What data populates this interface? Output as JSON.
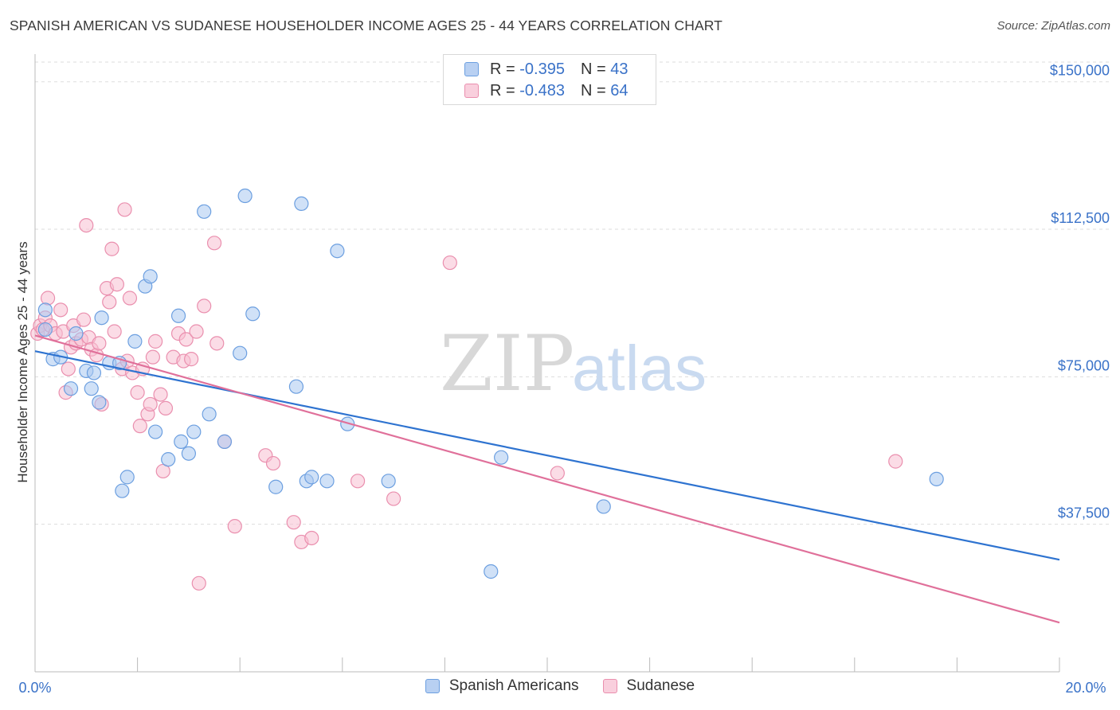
{
  "title": "SPANISH AMERICAN VS SUDANESE HOUSEHOLDER INCOME AGES 25 - 44 YEARS CORRELATION CHART",
  "source": "Source: ZipAtlas.com",
  "watermark": {
    "zip": "ZIP",
    "atlas": "atlas"
  },
  "colors": {
    "blue_fill": "#a9c8f0",
    "blue_stroke": "#6c9fe0",
    "blue_line": "#2e73d0",
    "pink_fill": "#f7bfd1",
    "pink_stroke": "#ea8fae",
    "pink_line": "#e0709a",
    "tick_label": "#3a72c8"
  },
  "legend_top": [
    {
      "r_label": "R = ",
      "r_value": "-0.395",
      "n_label": "N = ",
      "n_value": "43"
    },
    {
      "r_label": "R = ",
      "r_value": "-0.483",
      "n_label": "N = ",
      "n_value": "64"
    }
  ],
  "chart_data": {
    "type": "scatter",
    "xlabel": "",
    "ylabel": "Householder Income Ages 25 - 44 years",
    "xlim": [
      0,
      20
    ],
    "ylim": [
      0,
      155000
    ],
    "x_tick_labels": [
      "0.0%",
      "20.0%"
    ],
    "y_ticks": [
      37500,
      75000,
      112500,
      150000
    ],
    "y_tick_labels": [
      "$37,500",
      "$75,000",
      "$112,500",
      "$150,000"
    ],
    "grid": "horizontal dashed",
    "legend_position": "bottom",
    "series": [
      {
        "name": "Spanish Americans",
        "trend": {
          "x": [
            0,
            20
          ],
          "y": [
            81500,
            28500
          ]
        },
        "points": [
          [
            0.2,
            92000
          ],
          [
            0.2,
            87000
          ],
          [
            0.35,
            79500
          ],
          [
            0.5,
            80000
          ],
          [
            0.7,
            72000
          ],
          [
            0.8,
            86000
          ],
          [
            1.0,
            76500
          ],
          [
            1.1,
            72000
          ],
          [
            1.15,
            76000
          ],
          [
            1.25,
            68500
          ],
          [
            1.3,
            90000
          ],
          [
            1.45,
            78500
          ],
          [
            1.65,
            78500
          ],
          [
            1.7,
            46000
          ],
          [
            1.8,
            49500
          ],
          [
            1.95,
            84000
          ],
          [
            2.15,
            98000
          ],
          [
            2.25,
            100500
          ],
          [
            2.35,
            61000
          ],
          [
            2.6,
            54000
          ],
          [
            2.8,
            90500
          ],
          [
            2.85,
            58500
          ],
          [
            3.0,
            55500
          ],
          [
            3.1,
            61000
          ],
          [
            3.3,
            117000
          ],
          [
            3.4,
            65500
          ],
          [
            3.7,
            58500
          ],
          [
            4.0,
            81000
          ],
          [
            4.1,
            121000
          ],
          [
            4.25,
            91000
          ],
          [
            4.7,
            47000
          ],
          [
            5.1,
            72500
          ],
          [
            5.2,
            119000
          ],
          [
            5.3,
            48500
          ],
          [
            5.4,
            49500
          ],
          [
            5.7,
            48500
          ],
          [
            5.9,
            107000
          ],
          [
            6.1,
            63000
          ],
          [
            6.9,
            48500
          ],
          [
            8.9,
            25500
          ],
          [
            9.1,
            54500
          ],
          [
            11.1,
            42000
          ],
          [
            17.6,
            49000
          ]
        ]
      },
      {
        "name": "Sudanese",
        "trend": {
          "x": [
            0,
            20
          ],
          "y": [
            85500,
            12500
          ]
        },
        "points": [
          [
            0.05,
            86000
          ],
          [
            0.1,
            88000
          ],
          [
            0.15,
            87000
          ],
          [
            0.2,
            90000
          ],
          [
            0.25,
            95000
          ],
          [
            0.3,
            88000
          ],
          [
            0.4,
            86000
          ],
          [
            0.5,
            92000
          ],
          [
            0.55,
            86500
          ],
          [
            0.6,
            71000
          ],
          [
            0.65,
            77000
          ],
          [
            0.7,
            82500
          ],
          [
            0.75,
            88000
          ],
          [
            0.8,
            83500
          ],
          [
            0.9,
            84500
          ],
          [
            0.95,
            89500
          ],
          [
            1.0,
            113500
          ],
          [
            1.05,
            85000
          ],
          [
            1.1,
            82000
          ],
          [
            1.2,
            80500
          ],
          [
            1.25,
            83500
          ],
          [
            1.3,
            68000
          ],
          [
            1.4,
            97500
          ],
          [
            1.45,
            94000
          ],
          [
            1.5,
            107500
          ],
          [
            1.55,
            86500
          ],
          [
            1.6,
            98500
          ],
          [
            1.7,
            77000
          ],
          [
            1.75,
            117500
          ],
          [
            1.8,
            79000
          ],
          [
            1.85,
            95000
          ],
          [
            1.9,
            76000
          ],
          [
            2.0,
            71000
          ],
          [
            2.05,
            62500
          ],
          [
            2.1,
            77000
          ],
          [
            2.2,
            65500
          ],
          [
            2.25,
            68000
          ],
          [
            2.3,
            80000
          ],
          [
            2.35,
            84000
          ],
          [
            2.45,
            70500
          ],
          [
            2.5,
            51000
          ],
          [
            2.55,
            67000
          ],
          [
            2.7,
            80000
          ],
          [
            2.8,
            86000
          ],
          [
            2.9,
            79000
          ],
          [
            2.95,
            84500
          ],
          [
            3.05,
            79500
          ],
          [
            3.15,
            86500
          ],
          [
            3.2,
            22500
          ],
          [
            3.3,
            93000
          ],
          [
            3.5,
            109000
          ],
          [
            3.55,
            83500
          ],
          [
            3.7,
            58500
          ],
          [
            3.9,
            37000
          ],
          [
            4.5,
            55000
          ],
          [
            4.65,
            53000
          ],
          [
            5.05,
            38000
          ],
          [
            5.2,
            33000
          ],
          [
            5.4,
            34000
          ],
          [
            6.3,
            48500
          ],
          [
            7.0,
            44000
          ],
          [
            8.1,
            104000
          ],
          [
            10.2,
            50500
          ],
          [
            16.8,
            53500
          ]
        ]
      }
    ]
  }
}
